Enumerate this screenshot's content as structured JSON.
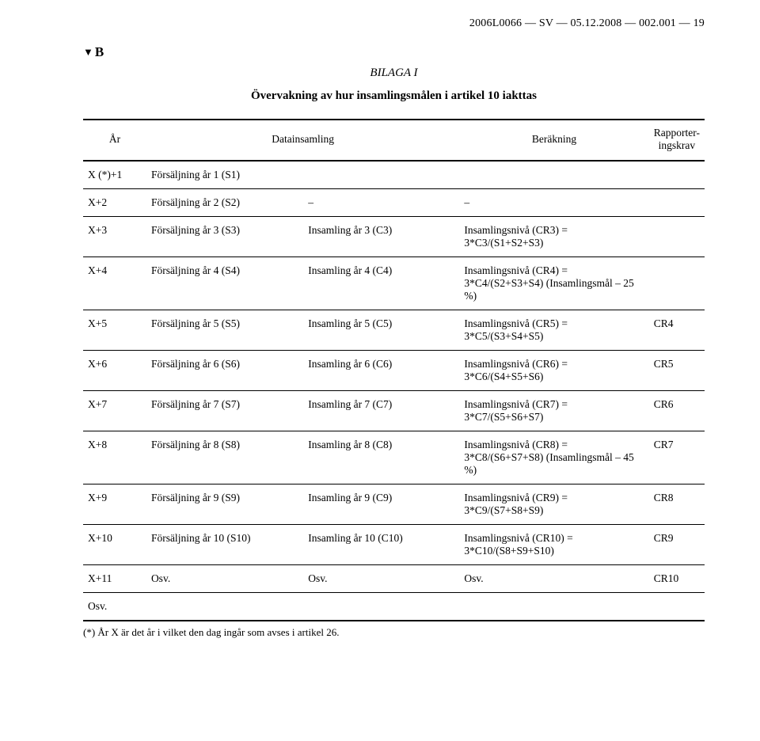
{
  "header": {
    "doc_ref": "2006L0066 — SV — 05.12.2008 — 002.001 — 19"
  },
  "marker": {
    "triangle": "▼",
    "letter": "B"
  },
  "annex": "BILAGA I",
  "title": "Övervakning av hur insamlingsmålen i artikel 10 iakttas",
  "columns": {
    "year": "År",
    "data": "Datainsamling",
    "calc": "Beräkning",
    "report": "Rapporter-ingskrav"
  },
  "dash": "–",
  "rows": [
    {
      "year": "X (*)+1",
      "data": "Försäljning år 1 (S1)",
      "calc": "",
      "calc2": "",
      "report": ""
    },
    {
      "year": "X+2",
      "data": "Försäljning år 2 (S2)",
      "calc": "–",
      "calc2": "",
      "report": "–"
    },
    {
      "year": "X+3",
      "data": "Försäljning år 3 (S3)",
      "calc": "Insamling år 3 (C3)",
      "calc2": "Insamlingsnivå (CR3) = 3*C3/(S1+S2+S3)",
      "report": ""
    },
    {
      "year": "X+4",
      "data": "Försäljning år 4 (S4)",
      "calc": "Insamling år 4 (C4)",
      "calc2": "Insamlingsnivå (CR4) = 3*C4/(S2+S3+S4) (Insamlingsmål – 25 %)",
      "report": ""
    },
    {
      "year": "X+5",
      "data": "Försäljning år 5 (S5)",
      "calc": "Insamling år 5 (C5)",
      "calc2": "Insamlingsnivå (CR5) = 3*C5/(S3+S4+S5)",
      "report": "CR4"
    },
    {
      "year": "X+6",
      "data": "Försäljning år 6 (S6)",
      "calc": "Insamling år 6 (C6)",
      "calc2": "Insamlingsnivå (CR6) = 3*C6/(S4+S5+S6)",
      "report": "CR5"
    },
    {
      "year": "X+7",
      "data": "Försäljning år 7 (S7)",
      "calc": "Insamling år 7 (C7)",
      "calc2": "Insamlingsnivå (CR7) = 3*C7/(S5+S6+S7)",
      "report": "CR6"
    },
    {
      "year": "X+8",
      "data": "Försäljning år 8 (S8)",
      "calc": "Insamling år 8 (C8)",
      "calc2": "Insamlingsnivå (CR8) = 3*C8/(S6+S7+S8) (Insamlingsmål – 45 %)",
      "report": "CR7"
    },
    {
      "year": "X+9",
      "data": "Försäljning år 9 (S9)",
      "calc": "Insamling år 9 (C9)",
      "calc2": "Insamlingsnivå (CR9) = 3*C9/(S7+S8+S9)",
      "report": "CR8"
    },
    {
      "year": "X+10",
      "data": "Försäljning år 10 (S10)",
      "calc": "Insamling år 10 (C10)",
      "calc2": "Insamlingsnivå (CR10) = 3*C10/(S8+S9+S10)",
      "report": "CR9"
    },
    {
      "year": "X+11",
      "data": "Osv.",
      "calc": "Osv.",
      "calc2": "Osv.",
      "report": "CR10"
    },
    {
      "year": "Osv.",
      "data": "",
      "calc": "",
      "calc2": "",
      "report": ""
    }
  ],
  "footnote": "(*)  År X är det år i vilket den dag ingår som avses i artikel 26."
}
